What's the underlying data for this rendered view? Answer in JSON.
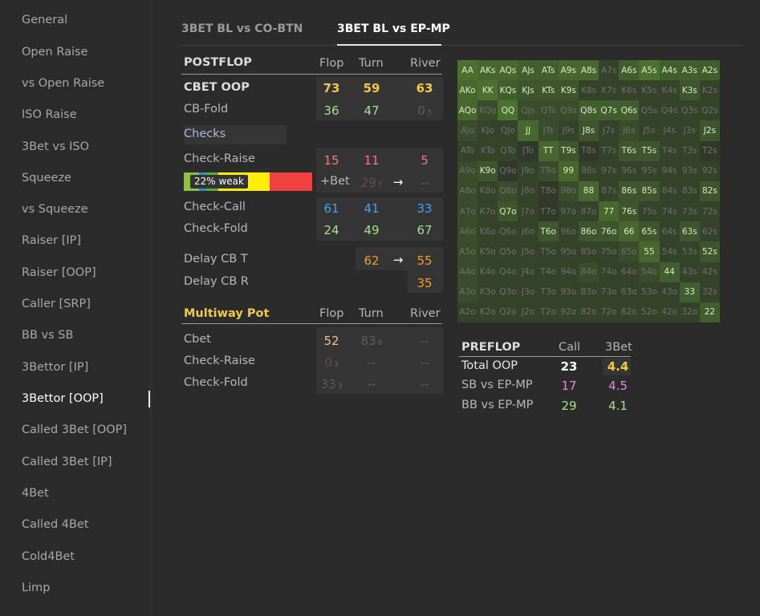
{
  "sidebar": {
    "items": [
      "General",
      "Open Raise",
      "vs Open Raise",
      "ISO Raise",
      "3Bet vs ISO",
      "Squeeze",
      "vs Squeeze",
      "Raiser [IP]",
      "Raiser [OOP]",
      "Caller [SRP]",
      "BB vs SB",
      "3Bettor [IP]",
      "3Bettor [OOP]",
      "Called 3Bet [OOP]",
      "Called 3Bet [IP]",
      "4Bet",
      "Called 4Bet",
      "Cold4Bet",
      "Limp"
    ],
    "active_index": 12
  },
  "tabs": [
    {
      "label": "3BET BL vs CO-BTN",
      "active": false
    },
    {
      "label": "3BET BL vs EP-MP",
      "active": true
    }
  ],
  "postflop": {
    "title": "POSTFLOP",
    "cols": [
      "Flop",
      "Turn",
      "River"
    ],
    "cbet_oop": {
      "label": "CBET OOP",
      "flop": "73",
      "turn": "59",
      "river": "63"
    },
    "cb_fold": {
      "label": "CB-Fold",
      "flop": "36",
      "turn": "47",
      "river": "0",
      "river_small": "3"
    },
    "checks_label": "Checks",
    "check_raise": {
      "label": "Check-Raise",
      "flop": "15",
      "turn": "11",
      "river": "5"
    },
    "bet_row": {
      "bar_label": "22% weak",
      "label": "+Bet",
      "turn": "29",
      "turn_small": "7",
      "arrow": "→",
      "river": "--"
    },
    "check_call": {
      "label": "Check-Call",
      "flop": "61",
      "turn": "41",
      "river": "33"
    },
    "check_fold": {
      "label": "Check-Fold",
      "flop": "24",
      "turn": "49",
      "river": "67"
    },
    "delay_cb_t": {
      "label": "Delay CB T",
      "turn": "62",
      "arrow": "→",
      "river": "55"
    },
    "delay_cb_r": {
      "label": "Delay CB R",
      "river": "35"
    }
  },
  "bar": {
    "segments": [
      {
        "color": "#8fc043",
        "frac": 0.12
      },
      {
        "color": "#2a8fd6",
        "frac": 0.05
      },
      {
        "color": "#5aa845",
        "frac": 0.1
      },
      {
        "color": "#ffee00",
        "frac": 0.4
      },
      {
        "color": "#f04040",
        "frac": 0.33
      }
    ]
  },
  "multiway": {
    "title": "Multiway Pot",
    "cols": [
      "Flop",
      "Turn",
      "River"
    ],
    "cbet": {
      "label": "Cbet",
      "flop": "52",
      "turn": "83",
      "turn_small": "6",
      "river": "--"
    },
    "check_raise": {
      "label": "Check-Raise",
      "flop": "0",
      "flop_small": "3",
      "turn": "--",
      "river": "--"
    },
    "check_fold": {
      "label": "Check-Fold",
      "flop": "33",
      "flop_small": "3",
      "turn": "--",
      "river": "--"
    }
  },
  "preflop": {
    "title": "PREFLOP",
    "cols": [
      "Call",
      "3Bet"
    ],
    "rows": [
      {
        "label": "Total OOP",
        "call": "23",
        "bet3": "4.4"
      },
      {
        "label": "SB vs EP-MP",
        "call": "17",
        "bet3": "4.5"
      },
      {
        "label": "BB vs EP-MP",
        "call": "29",
        "bet3": "4.1"
      }
    ]
  },
  "range_grid": {
    "ranks": [
      "A",
      "K",
      "Q",
      "J",
      "T",
      "9",
      "8",
      "7",
      "6",
      "5",
      "4",
      "3",
      "2"
    ],
    "intensity": [
      [
        0.8,
        0.7,
        0.7,
        0.6,
        0.6,
        0.7,
        0.7,
        0.3,
        0.6,
        0.8,
        0.6,
        0.6,
        0.6
      ],
      [
        0.7,
        0.8,
        0.6,
        0.5,
        0.5,
        0.5,
        0.3,
        0.3,
        0.3,
        0.3,
        0.3,
        0.5,
        0.3
      ],
      [
        0.7,
        0.4,
        0.8,
        0.4,
        0.4,
        0.4,
        0.6,
        0.6,
        0.6,
        0.3,
        0.3,
        0.3,
        0.3
      ],
      [
        0.4,
        0.3,
        0.3,
        0.7,
        0.4,
        0.3,
        0.5,
        0.3,
        0.4,
        0.3,
        0.3,
        0.3,
        0.5
      ],
      [
        0.3,
        0.3,
        0.3,
        0.2,
        0.7,
        0.5,
        0.2,
        0.3,
        0.5,
        0.5,
        0.3,
        0.3,
        0.2
      ],
      [
        0.4,
        0.5,
        0.2,
        0.3,
        0.4,
        0.7,
        0.3,
        0.3,
        0.3,
        0.3,
        0.3,
        0.3,
        0.3
      ],
      [
        0.4,
        0.3,
        0.4,
        0.3,
        0.2,
        0.4,
        0.7,
        0.3,
        0.5,
        0.5,
        0.3,
        0.3,
        0.5
      ],
      [
        0.4,
        0.3,
        0.5,
        0.3,
        0.2,
        0.3,
        0.3,
        0.7,
        0.5,
        0.3,
        0.3,
        0.3,
        0.3
      ],
      [
        0.4,
        0.3,
        0.3,
        0.3,
        0.5,
        0.3,
        0.5,
        0.5,
        0.7,
        0.5,
        0.3,
        0.5,
        0.3
      ],
      [
        0.4,
        0.3,
        0.3,
        0.3,
        0.3,
        0.3,
        0.3,
        0.3,
        0.4,
        0.7,
        0.3,
        0.3,
        0.5
      ],
      [
        0.4,
        0.3,
        0.3,
        0.3,
        0.3,
        0.3,
        0.4,
        0.3,
        0.3,
        0.4,
        0.6,
        0.3,
        0.3
      ],
      [
        0.4,
        0.3,
        0.3,
        0.3,
        0.3,
        0.3,
        0.3,
        0.3,
        0.3,
        0.3,
        0.3,
        0.6,
        0.3
      ],
      [
        0.3,
        0.3,
        0.3,
        0.3,
        0.3,
        0.3,
        0.3,
        0.3,
        0.3,
        0.3,
        0.3,
        0.3,
        0.6
      ]
    ]
  }
}
